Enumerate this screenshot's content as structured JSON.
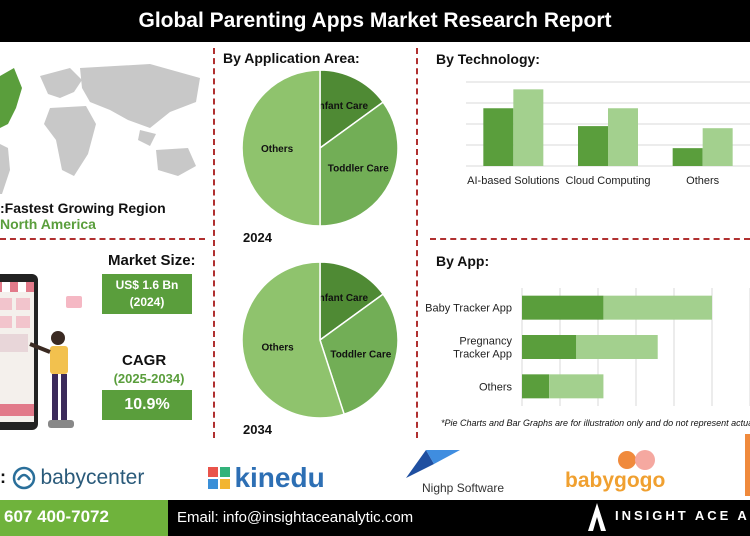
{
  "title": "Global Parenting Apps Market Research Report",
  "region": {
    "label": "Fastest Growing Region:",
    "value": "North America"
  },
  "market_size": {
    "label": "Market Size:",
    "value": "US$ 1.6 Bn",
    "year": "(2024)"
  },
  "cagr": {
    "label": "CAGR",
    "period": "(2025-2034)",
    "value": "10.9%"
  },
  "sections": {
    "application": "By Application Area:",
    "technology": "By  Technology:",
    "app": "By App:"
  },
  "disclaimer": "*Pie Charts and Bar Graphs are for illustration only and do not represent actual data",
  "companies": {
    "prefix": ":",
    "babycenter": "babycenter",
    "kinedu": "kinedu",
    "nighp": "Nighp Software",
    "babygogo": "babygogo"
  },
  "footer": {
    "phone": "607 400-7072",
    "email": "Email: info@insightaceanalytic.com",
    "brand": "INSIGHT ACE A"
  },
  "colors": {
    "dark_green": "#5a9e3c",
    "light_green": "#a3d08e",
    "mid_green": "#72ae56",
    "pie_dark": "#4f8a34",
    "pie_light": "#8fc36d"
  },
  "chart_data": [
    {
      "type": "pie",
      "id": "pie2024",
      "year_label": "2024",
      "categories": [
        "Infant Care",
        "Toddler Care",
        "Others"
      ],
      "values": [
        15,
        35,
        50
      ]
    },
    {
      "type": "pie",
      "id": "pie2034",
      "year_label": "2034",
      "categories": [
        "Infant Care",
        "Toddler Care",
        "Others"
      ],
      "values": [
        15,
        30,
        55
      ]
    },
    {
      "type": "bar",
      "id": "tech",
      "categories": [
        "AI-based Solutions",
        "Cloud Computing",
        "Others"
      ],
      "series": [
        {
          "values": [
            55,
            38,
            17
          ]
        },
        {
          "values": [
            73,
            55,
            36
          ]
        }
      ],
      "ylim": [
        0,
        80
      ],
      "grid": true
    },
    {
      "type": "bar",
      "id": "byapp",
      "orientation": "horizontal",
      "categories": [
        "Baby Tracker App",
        "Pregnancy Tracker App",
        "Others"
      ],
      "series": [
        {
          "values": [
            75,
            50,
            25
          ]
        },
        {
          "values": [
            100,
            75,
            50
          ]
        }
      ],
      "xlim": [
        0,
        210
      ],
      "grid": true
    }
  ]
}
